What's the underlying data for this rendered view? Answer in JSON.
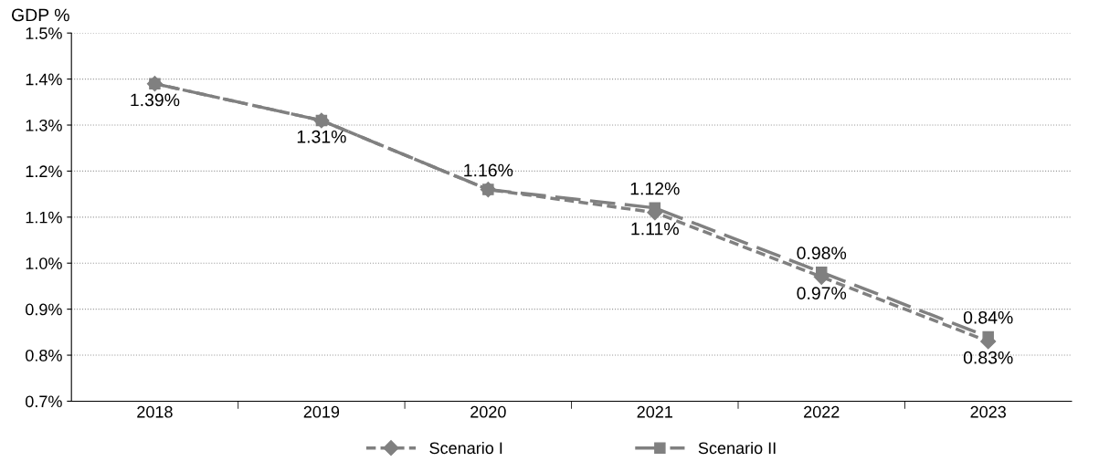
{
  "chart_data": {
    "type": "line",
    "ylabel": "GDP %",
    "categories": [
      "2018",
      "2019",
      "2020",
      "2021",
      "2022",
      "2023"
    ],
    "series": [
      {
        "name": "Scenario I",
        "color": "#808080",
        "marker": "diamond",
        "line_style": "dashed",
        "values": [
          1.39,
          1.31,
          1.16,
          1.11,
          0.97,
          0.83
        ],
        "value_labels": [
          "1.39%",
          "1.31%",
          null,
          "1.11%",
          "0.97%",
          "0.83%"
        ]
      },
      {
        "name": "Scenario II",
        "color": "#808080",
        "marker": "square",
        "line_style": "dashed",
        "values": [
          1.39,
          1.31,
          1.16,
          1.12,
          0.98,
          0.84
        ],
        "value_labels": [
          null,
          null,
          "1.16%",
          "1.12%",
          "0.98%",
          "0.84%"
        ]
      }
    ],
    "ylim": [
      0.7,
      1.5
    ],
    "yticks": [
      {
        "value": 0.7,
        "label": "0.7%"
      },
      {
        "value": 0.8,
        "label": "0.8%"
      },
      {
        "value": 0.9,
        "label": "0.9%"
      },
      {
        "value": 1.0,
        "label": "1.0%"
      },
      {
        "value": 1.1,
        "label": "1.1%"
      },
      {
        "value": 1.2,
        "label": "1.2%"
      },
      {
        "value": 1.3,
        "label": "1.3%"
      },
      {
        "value": 1.4,
        "label": "1.4%"
      },
      {
        "value": 1.5,
        "label": "1.5%"
      }
    ],
    "grid": "y",
    "legend": "bottom"
  }
}
